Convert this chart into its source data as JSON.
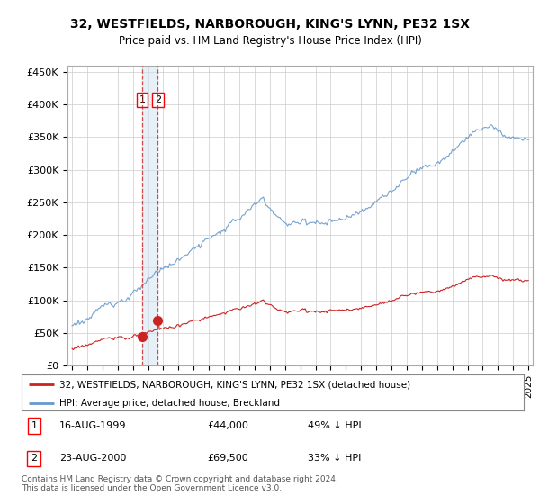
{
  "title": "32, WESTFIELDS, NARBOROUGH, KING'S LYNN, PE32 1SX",
  "subtitle": "Price paid vs. HM Land Registry's House Price Index (HPI)",
  "hpi_color": "#6699cc",
  "price_color": "#cc2222",
  "dashed_color": "#cc2222",
  "background_color": "#ffffff",
  "grid_color": "#cccccc",
  "transactions": [
    {
      "date": 1999.62,
      "price": 44000,
      "label": "1"
    },
    {
      "date": 2000.64,
      "price": 69500,
      "label": "2"
    }
  ],
  "table_rows": [
    {
      "num": "1",
      "date": "16-AUG-1999",
      "price": "£44,000",
      "hpi_pct": "49% ↓ HPI"
    },
    {
      "num": "2",
      "date": "23-AUG-2000",
      "price": "£69,500",
      "hpi_pct": "33% ↓ HPI"
    }
  ],
  "legend_entries": [
    "32, WESTFIELDS, NARBOROUGH, KING'S LYNN, PE32 1SX (detached house)",
    "HPI: Average price, detached house, Breckland"
  ],
  "footer": "Contains HM Land Registry data © Crown copyright and database right 2024.\nThis data is licensed under the Open Government Licence v3.0.",
  "ylim": [
    0,
    460000
  ],
  "xlim_start": 1994.7,
  "xlim_end": 2025.3,
  "yticks": [
    0,
    50000,
    100000,
    150000,
    200000,
    250000,
    300000,
    350000,
    400000,
    450000
  ],
  "ylabels": [
    "£0",
    "£50K",
    "£100K",
    "£150K",
    "£200K",
    "£250K",
    "£300K",
    "£350K",
    "£400K",
    "£450K"
  ]
}
